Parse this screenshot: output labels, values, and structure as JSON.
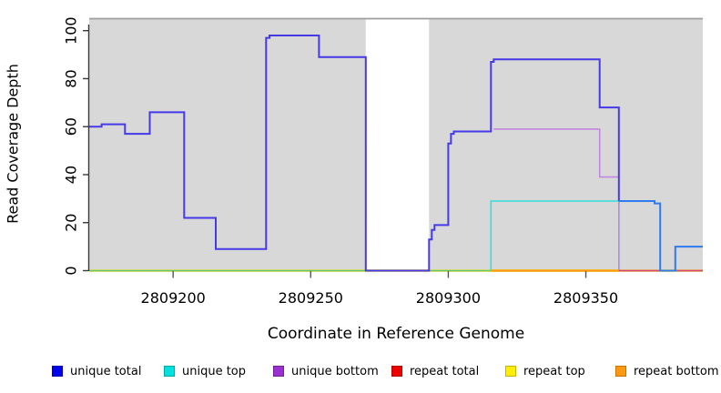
{
  "chart_data": {
    "type": "line",
    "subtype": "step-coverage-plot",
    "xlabel": "Coordinate in Reference Genome",
    "ylabel": "Read Coverage Depth",
    "x_range": [
      2809169.5,
      2809392.5
    ],
    "y_range": [
      0,
      105
    ],
    "x_ticks": [
      2809200,
      2809250,
      2809300,
      2809350
    ],
    "y_ticks": [
      0,
      20,
      40,
      60,
      80,
      100
    ],
    "grid": false,
    "plot_background": "#d8d8d8",
    "page_background": "#ffffff",
    "gap_band": {
      "x1": 2809270,
      "x2": 2809293,
      "color": "#ffffff"
    },
    "series": [
      {
        "name": "repeat total",
        "legend_color": "#ee0000",
        "segments": [
          {
            "color": "#cc2222",
            "width": 1.5,
            "points": [
              [
                2809169.5,
                0
              ],
              [
                2809392.5,
                0
              ]
            ]
          }
        ]
      },
      {
        "name": "repeat top",
        "legend_color": "#ffee00",
        "segments": [
          {
            "color": "#efe36a",
            "width": 3,
            "points": [
              [
                2809169.5,
                0
              ],
              [
                2809392.5,
                0
              ]
            ]
          }
        ]
      },
      {
        "name": "unique top",
        "legend_color": "#00e0e0",
        "segments": [
          {
            "color": "#63c56f",
            "width": 1.6,
            "points": [
              [
                2809169.5,
                0
              ],
              [
                2809315.5,
                0
              ]
            ]
          },
          {
            "color": "#35dede",
            "width": 1.6,
            "points": [
              [
                2809315.5,
                0
              ],
              [
                2809315.5,
                29
              ],
              [
                2809362,
                29
              ],
              [
                2809362,
                0
              ]
            ]
          }
        ]
      },
      {
        "name": "repeat bottom",
        "legend_color": "#ff9912",
        "segments": [
          {
            "color": "#ff9912",
            "width": 2.2,
            "points": [
              [
                2809315.5,
                0
              ],
              [
                2809362,
                0
              ]
            ]
          }
        ]
      },
      {
        "name": "unique bottom",
        "legend_color": "#9b30d0",
        "segments": [
          {
            "color": "#c086dd",
            "width": 1.6,
            "points": [
              [
                2809316.5,
                59
              ],
              [
                2809355,
                59
              ],
              [
                2809355,
                39
              ],
              [
                2809362,
                39
              ],
              [
                2809362,
                0
              ]
            ]
          },
          {
            "color": "#d6447c",
            "width": 1.8,
            "points": [
              [
                2809362,
                0
              ],
              [
                2809392.5,
                0
              ]
            ]
          }
        ]
      },
      {
        "name": "unique total",
        "legend_color": "#0000ee",
        "segments": [
          {
            "color": "#4639e8",
            "width": 2,
            "points": [
              [
                2809169.5,
                60
              ],
              [
                2809174,
                60
              ],
              [
                2809174,
                61
              ],
              [
                2809182.5,
                61
              ],
              [
                2809182.5,
                57
              ],
              [
                2809191.5,
                57
              ],
              [
                2809191.5,
                66
              ],
              [
                2809204,
                66
              ],
              [
                2809204,
                22
              ],
              [
                2809215.5,
                22
              ],
              [
                2809215.5,
                9
              ],
              [
                2809233.8,
                9
              ],
              [
                2809233.8,
                97
              ],
              [
                2809235,
                97
              ],
              [
                2809235,
                98
              ],
              [
                2809253,
                98
              ],
              [
                2809253,
                89
              ],
              [
                2809270,
                89
              ],
              [
                2809270,
                0
              ],
              [
                2809293,
                0
              ],
              [
                2809293,
                13
              ],
              [
                2809294,
                13
              ],
              [
                2809294,
                17
              ],
              [
                2809295,
                17
              ],
              [
                2809295,
                19
              ],
              [
                2809300,
                19
              ],
              [
                2809300,
                53
              ],
              [
                2809301,
                53
              ],
              [
                2809301,
                57
              ],
              [
                2809302,
                57
              ],
              [
                2809302,
                58
              ],
              [
                2809315.5,
                58
              ],
              [
                2809315.5,
                87
              ],
              [
                2809316.5,
                87
              ],
              [
                2809316.5,
                88
              ],
              [
                2809355,
                88
              ],
              [
                2809355,
                68
              ],
              [
                2809362,
                68
              ],
              [
                2809362,
                29
              ]
            ]
          },
          {
            "color": "#2e7bf0",
            "width": 2,
            "points": [
              [
                2809362,
                29
              ],
              [
                2809375,
                29
              ],
              [
                2809375,
                28
              ],
              [
                2809377,
                28
              ],
              [
                2809377,
                0
              ],
              [
                2809382.5,
                0
              ],
              [
                2809382.5,
                10
              ],
              [
                2809392.5,
                10
              ]
            ]
          }
        ]
      }
    ],
    "legend": [
      {
        "label": "unique total",
        "color": "#0000ee",
        "border": "#0000b0"
      },
      {
        "label": "unique top",
        "color": "#00e0e0",
        "border": "#00a8a8"
      },
      {
        "label": "unique bottom",
        "color": "#9b30d0",
        "border": "#70209a"
      },
      {
        "label": "repeat total",
        "color": "#ee0000",
        "border": "#b00000"
      },
      {
        "label": "repeat top",
        "color": "#ffee00",
        "border": "#c8b400"
      },
      {
        "label": "repeat bottom",
        "color": "#ff9912",
        "border": "#c87200"
      }
    ],
    "axis_colors": {
      "axis_line": "#3a3a3a",
      "tick": "#555555",
      "top_border": "#9e9e9e"
    }
  }
}
